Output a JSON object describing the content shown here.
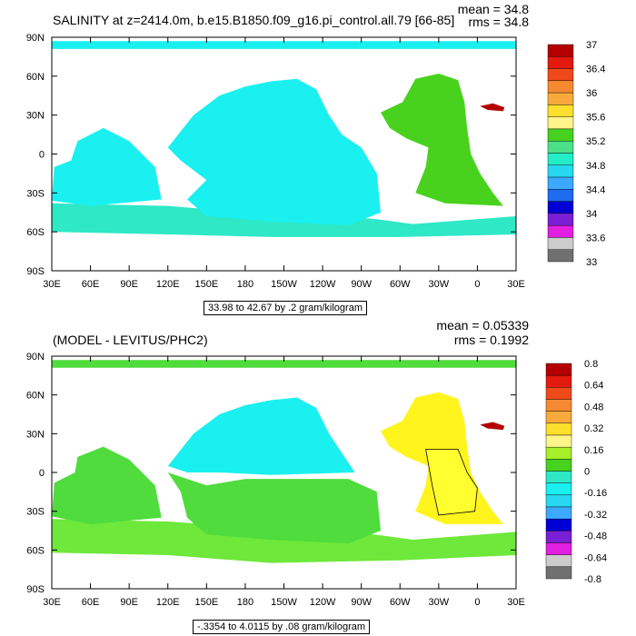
{
  "chart_data": [
    {
      "type": "heatmap",
      "title": "SALINITY at z=2414.0m, b.e15.B1850.f09_g16.pi_control.all.79 [66-85]",
      "mean_text": "mean = 34.8",
      "rms_text": "rms = 34.8",
      "range_text": "33.98 to 42.67 by .2 gram/kilogram",
      "x_tick_labels": [
        "30E",
        "60E",
        "90E",
        "120E",
        "150E",
        "180",
        "150W",
        "120W",
        "90W",
        "60W",
        "30W",
        "0",
        "30E"
      ],
      "y_tick_labels": [
        "90N",
        "60N",
        "30N",
        "0",
        "30S",
        "60S",
        "90S"
      ],
      "colorbar": {
        "labels": [
          "37",
          "36.4",
          "36",
          "35.6",
          "35.2",
          "34.8",
          "34.4",
          "34",
          "33.6",
          "33"
        ],
        "colors": [
          "#b40000",
          "#e41a10",
          "#f04a1a",
          "#f58a32",
          "#f9aa3c",
          "#fde02e",
          "#fff48a",
          "#46d21e",
          "#4de08a",
          "#24eec8",
          "#27d8f0",
          "#3ca9ff",
          "#1e6cf0",
          "#0000d6",
          "#7a1fd6",
          "#e01fe0",
          "#cccccc",
          "#707070"
        ],
        "colors_order": "top_to_bottom"
      },
      "regions": {
        "ocean_general": "#1af0f0",
        "atlantic": "#49d21d",
        "southern_ocean": "#2ee8c6",
        "mediterranean": "#b40000"
      }
    },
    {
      "type": "heatmap",
      "title": "(MODEL - LEVITUS/PHC2)",
      "mean_text": "mean = 0.05339",
      "rms_text": "rms = 0.1992",
      "range_text": "-.3354 to 4.0115 by .08 gram/kilogram",
      "x_tick_labels": [
        "30E",
        "60E",
        "90E",
        "120E",
        "150E",
        "180",
        "150W",
        "120W",
        "90W",
        "60W",
        "30W",
        "0",
        "30E"
      ],
      "y_tick_labels": [
        "90N",
        "60N",
        "30N",
        "0",
        "30S",
        "60S",
        "90S"
      ],
      "colorbar": {
        "labels": [
          "0.8",
          "0.64",
          "0.48",
          "0.32",
          "0.16",
          "0",
          "-0.16",
          "-0.32",
          "-0.48",
          "-0.64",
          "-0.8"
        ],
        "colors": [
          "#b40000",
          "#e41a10",
          "#f04a1a",
          "#f58a32",
          "#f9aa3c",
          "#fde02e",
          "#fff48a",
          "#a8f02a",
          "#46d21e",
          "#2ee8c6",
          "#1af0f0",
          "#27d8f0",
          "#3ca9ff",
          "#0000d6",
          "#7a1fd6",
          "#e01fe0",
          "#cccccc",
          "#707070"
        ],
        "colors_order": "top_to_bottom"
      },
      "regions": {
        "pacific_north": "#1af0f0",
        "pacific_south": "#4fdc3c",
        "southern_ocean": "#6ee83a",
        "atlantic_north": "#fff41c",
        "atlantic_central": "#ffff30",
        "mediterranean": "#b40000"
      }
    }
  ]
}
